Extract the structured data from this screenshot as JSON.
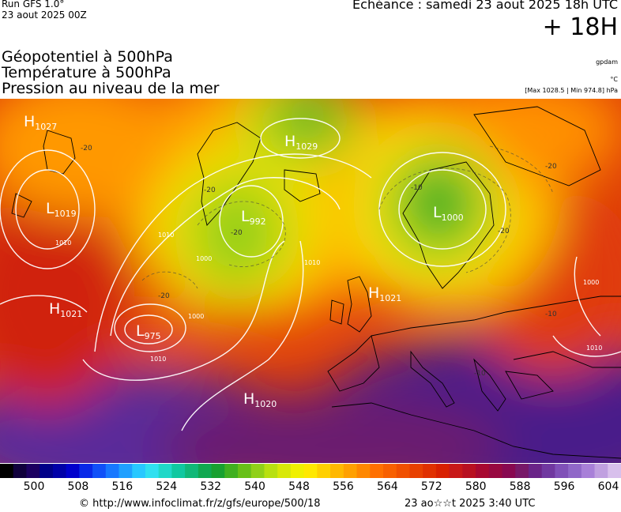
{
  "header": {
    "run": "Run GFS 1.0°",
    "run_time": "23 aout 2025 00Z",
    "echeance": "Echéance : samedi 23 aout 2025 18h UTC",
    "lead": "+ 18H"
  },
  "layers": [
    "Géopotentiel à 500hPa",
    "Température à 500hPa",
    "Pression au niveau de la mer"
  ],
  "units": {
    "geopotential": "gpdam",
    "temperature": "°C",
    "pressure_range": "[Max 1028.5 | Min 974.8] hPa"
  },
  "pressure_systems": [
    {
      "type": "H",
      "value": "1027"
    },
    {
      "type": "H",
      "value": "1029"
    },
    {
      "type": "L",
      "value": "1019"
    },
    {
      "type": "L",
      "value": "992"
    },
    {
      "type": "L",
      "value": "1000"
    },
    {
      "type": "H",
      "value": "1021"
    },
    {
      "type": "H",
      "value": "1021"
    },
    {
      "type": "L",
      "value": "975"
    },
    {
      "type": "H",
      "value": "1020"
    }
  ],
  "isobar_labels": [
    "1010",
    "1000",
    "1000",
    "1010",
    "1010",
    "1000",
    "1010",
    "1010"
  ],
  "temp_labels": [
    "-20",
    "-20",
    "-20",
    "-10",
    "-20",
    "-20",
    "-20",
    "-10",
    "-10"
  ],
  "scale": {
    "colors": [
      "#000000",
      "#10003c",
      "#1c0060",
      "#000088",
      "#0000a8",
      "#0000cc",
      "#0828e8",
      "#1050f8",
      "#1878ff",
      "#20a0ff",
      "#28c8ff",
      "#30e0f0",
      "#20d8c8",
      "#10c8a0",
      "#10b878",
      "#10a850",
      "#18a030",
      "#40b020",
      "#68c018",
      "#90d018",
      "#b8e010",
      "#d8e808",
      "#f0f000",
      "#ffe800",
      "#ffd000",
      "#ffb800",
      "#ffa000",
      "#ff8800",
      "#ff7000",
      "#f86000",
      "#f05000",
      "#e84000",
      "#e03000",
      "#d82000",
      "#c81818",
      "#b81020",
      "#a80830",
      "#980840",
      "#880850",
      "#781868",
      "#6a2488",
      "#7038a0",
      "#8050b8",
      "#9068c8",
      "#a880d8",
      "#c0a0e0",
      "#d8c0ec"
    ],
    "labels": [
      "500",
      "508",
      "516",
      "524",
      "532",
      "540",
      "548",
      "556",
      "564",
      "572",
      "580",
      "588",
      "596",
      "604"
    ]
  },
  "footer": {
    "credit": "© http://www.infoclimat.fr/z/gfs/europe/500/18",
    "stamp": "23 ao☆☆t 2025  3:40 UTC"
  }
}
